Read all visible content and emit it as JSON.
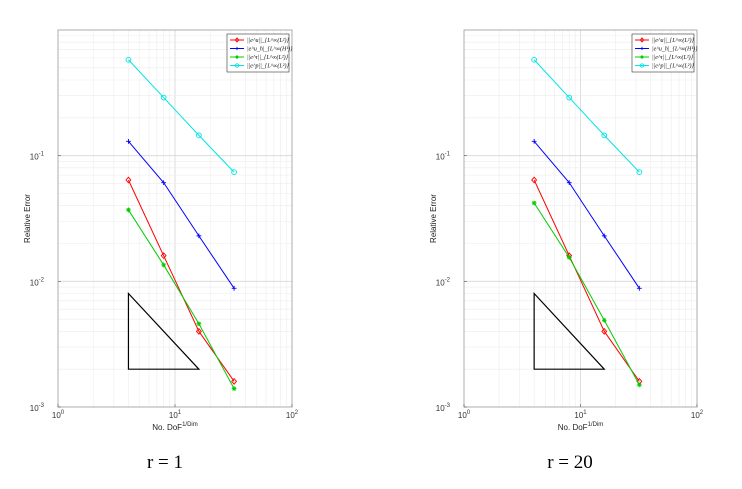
{
  "chart_data": [
    {
      "type": "line",
      "caption": "r = 1",
      "xlabel": "No. DoF",
      "xlabel_sup": "1/Dim",
      "ylabel": "Relative Error",
      "xscale": "log",
      "yscale": "log",
      "xlim": [
        1,
        100
      ],
      "ylim": [
        0.001,
        1
      ],
      "grid": true,
      "legend_position": "top-right",
      "x_ticks": [
        {
          "value": 1,
          "base": "10",
          "exp": "0"
        },
        {
          "value": 10,
          "base": "10",
          "exp": "1"
        },
        {
          "value": 100,
          "base": "10",
          "exp": "2"
        }
      ],
      "y_ticks": [
        {
          "value": 0.001,
          "base": "10",
          "exp": "-3"
        },
        {
          "value": 0.01,
          "base": "10",
          "exp": "-2"
        },
        {
          "value": 0.1,
          "base": "10",
          "exp": "-1"
        }
      ],
      "series": [
        {
          "name": "||e^u||_{L^∞(L²)}",
          "color": "#ff0000",
          "marker": "diamond",
          "x": [
            4,
            8,
            16,
            32
          ],
          "y": [
            0.064,
            0.016,
            0.004,
            0.0016
          ]
        },
        {
          "name": "|e^u_h|_{L^∞(H¹)}",
          "color": "#0000ff",
          "marker": "plus",
          "x": [
            4,
            8,
            16,
            32
          ],
          "y": [
            0.13,
            0.061,
            0.023,
            0.0088
          ]
        },
        {
          "name": "||e^τ||_{L^∞(L²)}",
          "color": "#00cc00",
          "marker": "asterisk",
          "x": [
            4,
            8,
            16,
            32
          ],
          "y": [
            0.037,
            0.0135,
            0.0046,
            0.0014
          ]
        },
        {
          "name": "||e^p||_{L^∞(L²)}",
          "color": "#00e5e5",
          "marker": "circle",
          "x": [
            4,
            8,
            16,
            32
          ],
          "y": [
            0.58,
            0.29,
            0.145,
            0.074
          ]
        }
      ],
      "triangle": {
        "x": [
          4,
          4,
          16
        ],
        "y": [
          0.008,
          0.002,
          0.002
        ]
      }
    },
    {
      "type": "line",
      "caption": "r = 20",
      "xlabel": "No. DoF",
      "xlabel_sup": "1/Dim",
      "ylabel": "Relative Error",
      "xscale": "log",
      "yscale": "log",
      "xlim": [
        1,
        100
      ],
      "ylim": [
        0.001,
        1
      ],
      "grid": true,
      "legend_position": "top-right",
      "x_ticks": [
        {
          "value": 1,
          "base": "10",
          "exp": "0"
        },
        {
          "value": 10,
          "base": "10",
          "exp": "1"
        },
        {
          "value": 100,
          "base": "10",
          "exp": "2"
        }
      ],
      "y_ticks": [
        {
          "value": 0.001,
          "base": "10",
          "exp": "-3"
        },
        {
          "value": 0.01,
          "base": "10",
          "exp": "-2"
        },
        {
          "value": 0.1,
          "base": "10",
          "exp": "-1"
        }
      ],
      "series": [
        {
          "name": "||e^u||_{L^∞(L²)}",
          "color": "#ff0000",
          "marker": "diamond",
          "x": [
            4,
            8,
            16,
            32
          ],
          "y": [
            0.064,
            0.016,
            0.004,
            0.0016
          ]
        },
        {
          "name": "|e^u_h|_{L^∞(H¹)}",
          "color": "#0000ff",
          "marker": "plus",
          "x": [
            4,
            8,
            16,
            32
          ],
          "y": [
            0.13,
            0.061,
            0.023,
            0.0088
          ]
        },
        {
          "name": "||e^τ||_{L^∞(L²)}",
          "color": "#00cc00",
          "marker": "asterisk",
          "x": [
            4,
            8,
            16,
            32
          ],
          "y": [
            0.042,
            0.0155,
            0.0049,
            0.0015
          ]
        },
        {
          "name": "||e^p||_{L^∞(L²)}",
          "color": "#00e5e5",
          "marker": "circle",
          "x": [
            4,
            8,
            16,
            32
          ],
          "y": [
            0.58,
            0.29,
            0.145,
            0.074
          ]
        }
      ],
      "triangle": {
        "x": [
          4,
          4,
          16
        ],
        "y": [
          0.008,
          0.002,
          0.002
        ]
      }
    }
  ]
}
